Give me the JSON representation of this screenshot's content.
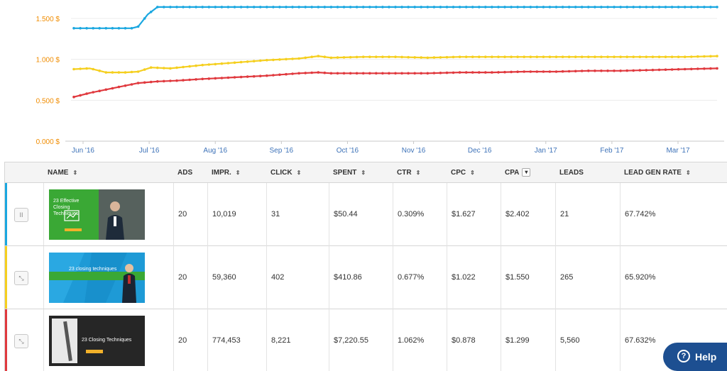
{
  "chart_data": {
    "type": "line",
    "y_ticks": [
      "0.000 $",
      "0.500 $",
      "1.000 $",
      "1.500 $"
    ],
    "ylim": [
      0,
      1.75
    ],
    "x_tick_labels": [
      "Jun '16",
      "Jul '16",
      "Aug '16",
      "Sep '16",
      "Oct '16",
      "Nov '16",
      "Dec '16",
      "Jan '17",
      "Feb '17",
      "Mar '17"
    ],
    "x_range": [
      0,
      10
    ],
    "series": [
      {
        "name": "blue",
        "color": "#1aa7e0",
        "x": [
          0,
          0.3,
          0.6,
          0.9,
          1.0,
          1.15,
          1.3,
          1.5,
          2,
          2.5,
          3,
          3.5,
          4,
          4.5,
          5,
          5.5,
          6,
          6.5,
          7,
          7.5,
          8,
          8.5,
          9,
          9.5,
          10
        ],
        "values": [
          1.38,
          1.38,
          1.38,
          1.38,
          1.4,
          1.55,
          1.64,
          1.64,
          1.64,
          1.64,
          1.64,
          1.64,
          1.64,
          1.64,
          1.64,
          1.64,
          1.64,
          1.64,
          1.64,
          1.64,
          1.64,
          1.64,
          1.64,
          1.64,
          1.64
        ]
      },
      {
        "name": "yellow",
        "color": "#f5cf1f",
        "x": [
          0,
          0.25,
          0.5,
          0.8,
          1.0,
          1.2,
          1.5,
          2,
          2.5,
          3,
          3.5,
          3.8,
          4,
          4.5,
          5,
          5.5,
          6,
          6.5,
          7,
          7.5,
          8,
          8.5,
          9,
          9.5,
          10
        ],
        "values": [
          0.88,
          0.89,
          0.84,
          0.84,
          0.85,
          0.9,
          0.89,
          0.93,
          0.96,
          0.99,
          1.01,
          1.04,
          1.02,
          1.03,
          1.03,
          1.02,
          1.03,
          1.03,
          1.03,
          1.03,
          1.03,
          1.03,
          1.03,
          1.03,
          1.04
        ]
      },
      {
        "name": "red",
        "color": "#e0393e",
        "x": [
          0,
          0.25,
          0.5,
          0.75,
          1.0,
          1.3,
          1.6,
          2,
          2.5,
          3,
          3.5,
          3.8,
          4,
          4.5,
          5,
          5.5,
          6,
          6.5,
          7,
          7.5,
          8,
          8.5,
          9,
          9.5,
          10
        ],
        "values": [
          0.54,
          0.59,
          0.63,
          0.67,
          0.71,
          0.73,
          0.74,
          0.76,
          0.78,
          0.8,
          0.83,
          0.84,
          0.83,
          0.83,
          0.83,
          0.83,
          0.84,
          0.84,
          0.85,
          0.85,
          0.86,
          0.86,
          0.87,
          0.88,
          0.89
        ]
      }
    ]
  },
  "table": {
    "headers": {
      "name": "NAME",
      "ads": "ADS",
      "impr": "IMPR.",
      "click": "CLICK",
      "spent": "SPENT",
      "ctr": "CTR",
      "cpc": "CPC",
      "cpa": "CPA",
      "leads": "LEADS",
      "lead_gen_rate": "LEAD GEN RATE"
    },
    "sort_glyph": "⇕",
    "cpa_dropdown_glyph": "▾",
    "rows": [
      {
        "accent": "#1aa7e0",
        "control_glyph": "II",
        "thumb_title": "23 Effective Closing Techniques",
        "ads": "20",
        "impr": "10,019",
        "click": "31",
        "spent": "$50.44",
        "ctr": "0.309%",
        "cpc": "$1.627",
        "cpa": "$2.402",
        "leads": "21",
        "lead_gen_rate": "67.742%"
      },
      {
        "accent": "#f5cf1f",
        "control_glyph": "⤡",
        "thumb_title": "23 closing techniques",
        "ads": "20",
        "impr": "59,360",
        "click": "402",
        "spent": "$410.86",
        "ctr": "0.677%",
        "cpc": "$1.022",
        "cpa": "$1.550",
        "leads": "265",
        "lead_gen_rate": "65.920%"
      },
      {
        "accent": "#e0393e",
        "control_glyph": "⤡",
        "thumb_title": "23 Closing Techniques",
        "ads": "20",
        "impr": "774,453",
        "click": "8,221",
        "spent": "$7,220.55",
        "ctr": "1.062%",
        "cpc": "$0.878",
        "cpa": "$1.299",
        "leads": "5,560",
        "lead_gen_rate": "67.632%"
      }
    ]
  },
  "help": {
    "label": "Help",
    "icon_glyph": "?"
  }
}
